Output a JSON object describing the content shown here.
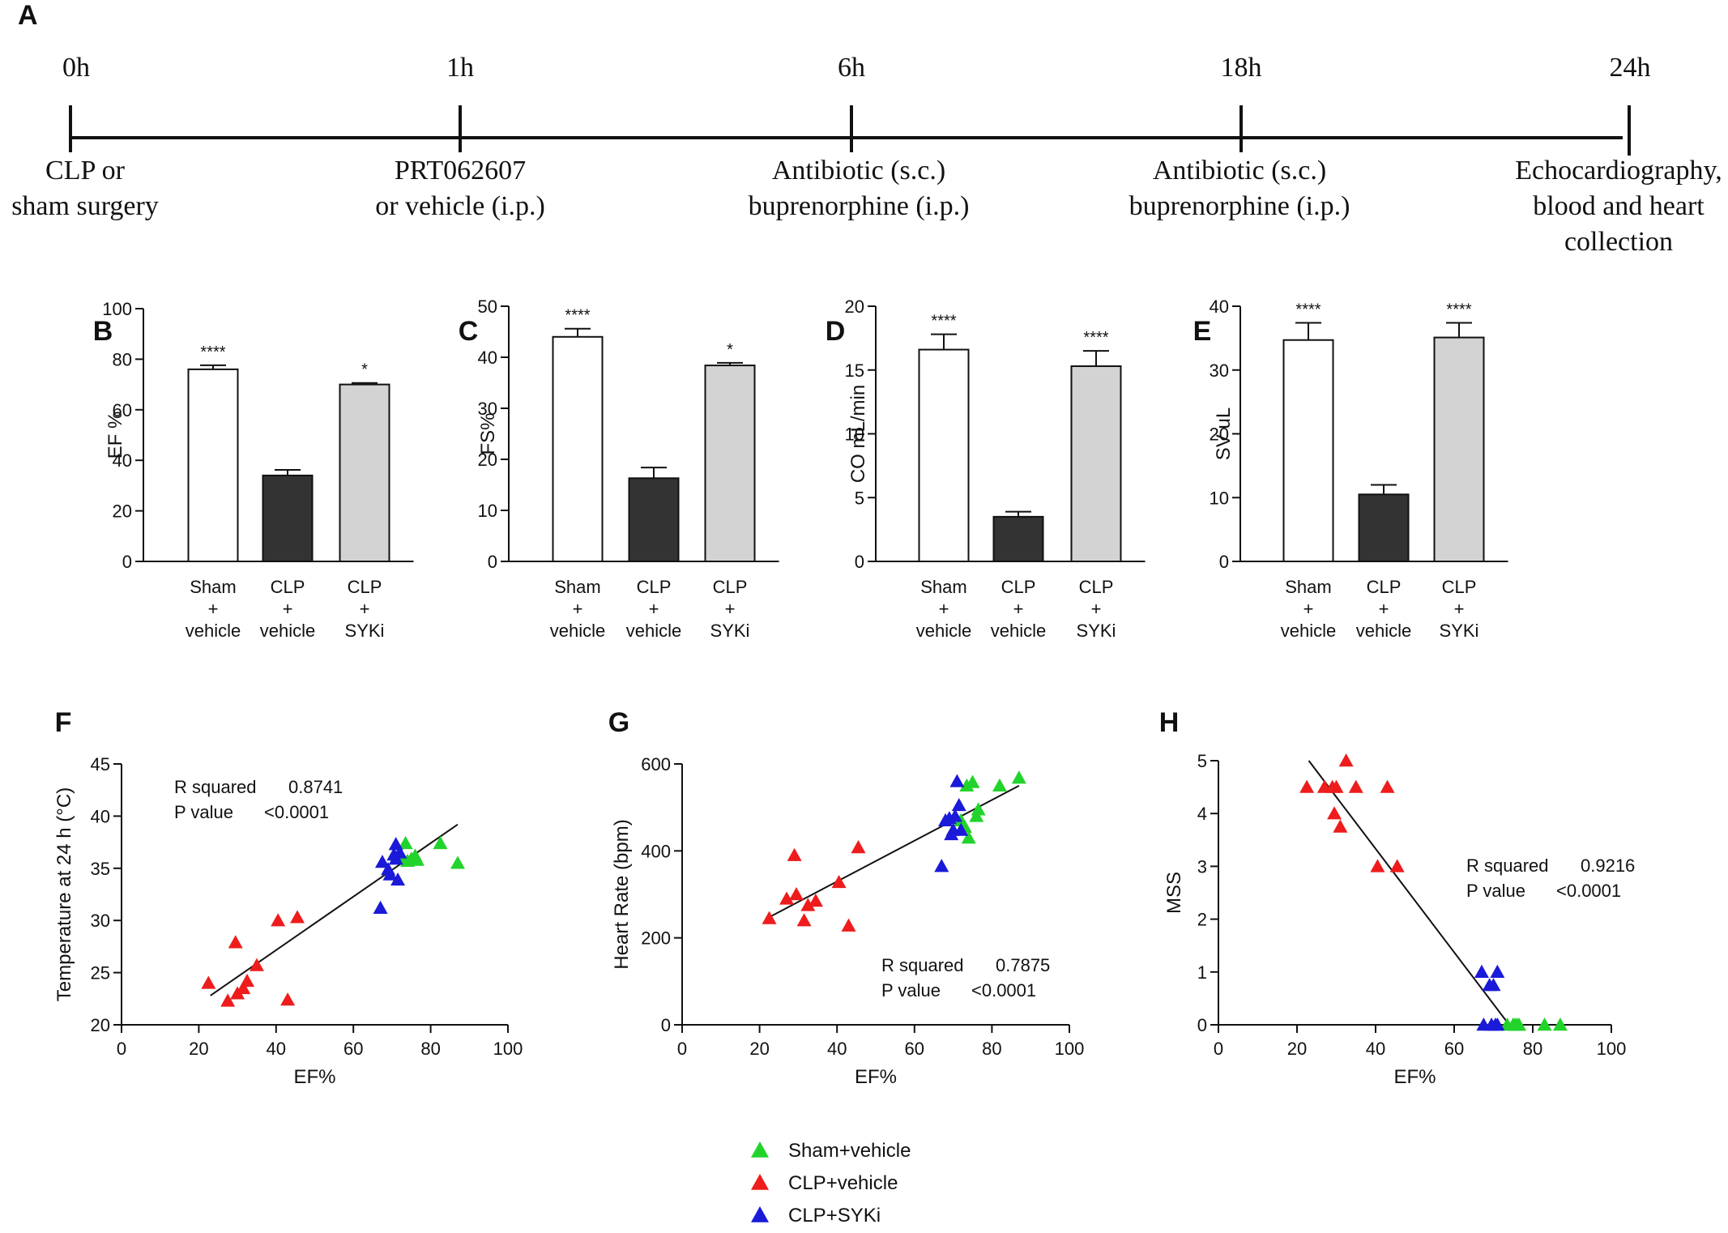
{
  "colors": {
    "sham": "#22d32b",
    "clp": "#ee1c1c",
    "syki": "#1a1ad8",
    "bar_sham": "#ffffff",
    "bar_clp": "#333333",
    "bar_syki": "#d3d3d3",
    "axis": "#111111"
  },
  "timeline": {
    "panel_label": "A",
    "points": [
      {
        "time": "0h",
        "label_lines": [
          "CLP or",
          "sham surgery"
        ]
      },
      {
        "time": "1h",
        "label_lines": [
          "PRT062607",
          "or vehicle (i.p.)"
        ]
      },
      {
        "time": "6h",
        "label_lines": [
          "Antibiotic (s.c.)",
          "buprenorphine (i.p.)"
        ]
      },
      {
        "time": "18h",
        "label_lines": [
          "Antibiotic (s.c.)",
          "buprenorphine (i.p.)"
        ]
      },
      {
        "time": "24h",
        "label_lines": [
          "Echocardiography,",
          "blood and heart",
          "collection"
        ]
      }
    ]
  },
  "legend": [
    {
      "key": "sham",
      "label": "Sham+vehicle"
    },
    {
      "key": "clp",
      "label": "CLP+vehicle"
    },
    {
      "key": "syki",
      "label": "CLP+SYKi"
    }
  ],
  "chart_data": [
    {
      "panel": "B",
      "type": "bar",
      "ylabel": "EF %",
      "ylim": [
        0,
        100
      ],
      "yticks": [
        0,
        20,
        40,
        60,
        80,
        100
      ],
      "categories": [
        [
          "Sham",
          "+",
          "vehicle"
        ],
        [
          "CLP",
          "+",
          "vehicle"
        ],
        [
          "CLP",
          "+",
          "SYKi"
        ]
      ],
      "values": [
        76,
        34,
        70
      ],
      "errors": [
        1.6,
        2.2,
        0.6
      ],
      "significance": [
        "****",
        "",
        "*"
      ]
    },
    {
      "panel": "C",
      "type": "bar",
      "ylabel": "FS%",
      "ylim": [
        0,
        50
      ],
      "yticks": [
        0,
        10,
        20,
        30,
        40,
        50
      ],
      "categories": [
        [
          "Sham",
          "+",
          "vehicle"
        ],
        [
          "CLP",
          "+",
          "vehicle"
        ],
        [
          "CLP",
          "+",
          "SYKi"
        ]
      ],
      "values": [
        44,
        16.3,
        38.4
      ],
      "errors": [
        1.6,
        2.1,
        0.5
      ],
      "significance": [
        "****",
        "",
        "*"
      ]
    },
    {
      "panel": "D",
      "type": "bar",
      "ylabel": "CO mL/min",
      "ylim": [
        0,
        20
      ],
      "yticks": [
        0,
        5,
        10,
        15,
        20
      ],
      "categories": [
        [
          "Sham",
          "+",
          "vehicle"
        ],
        [
          "CLP",
          "+",
          "vehicle"
        ],
        [
          "CLP",
          "+",
          "SYKi"
        ]
      ],
      "values": [
        16.6,
        3.5,
        15.3
      ],
      "errors": [
        1.2,
        0.4,
        1.2
      ],
      "significance": [
        "****",
        "",
        "****"
      ]
    },
    {
      "panel": "E",
      "type": "bar",
      "ylabel": "SV uL",
      "ylim": [
        0,
        40
      ],
      "yticks": [
        0,
        10,
        20,
        30,
        40
      ],
      "categories": [
        [
          "Sham",
          "+",
          "vehicle"
        ],
        [
          "CLP",
          "+",
          "vehicle"
        ],
        [
          "CLP",
          "+",
          "SYKi"
        ]
      ],
      "values": [
        34.7,
        10.5,
        35.1
      ],
      "errors": [
        2.7,
        1.5,
        2.3
      ],
      "significance": [
        "****",
        "",
        "****"
      ]
    },
    {
      "panel": "F",
      "type": "scatter",
      "xlabel": "EF%",
      "ylabel": "Temperature at 24 h (°C)",
      "xlim": [
        0,
        100
      ],
      "ylim": [
        20,
        45
      ],
      "xticks": [
        0,
        20,
        40,
        60,
        80,
        100
      ],
      "yticks": [
        20,
        25,
        30,
        35,
        40,
        45
      ],
      "stats": {
        "r_label": "R squared",
        "r_value": "0.8741",
        "p_label": "P value",
        "p_value": "<0.0001"
      },
      "stats_pos": "top-left",
      "fit": [
        [
          23,
          22.8
        ],
        [
          87,
          39.2
        ]
      ],
      "series": [
        {
          "name": "Sham+vehicle",
          "key": "sham",
          "points": [
            [
              73.5,
              37.4
            ],
            [
              75,
              35.9
            ],
            [
              76,
              36.2
            ],
            [
              76.5,
              35.8
            ],
            [
              82.5,
              37.4
            ],
            [
              87,
              35.5
            ],
            [
              72.5,
              36.1
            ],
            [
              74,
              35.7
            ]
          ]
        },
        {
          "name": "CLP+vehicle",
          "key": "clp",
          "points": [
            [
              22.5,
              24
            ],
            [
              27.5,
              22.3
            ],
            [
              29.5,
              27.9
            ],
            [
              30,
              23
            ],
            [
              31.5,
              23.5
            ],
            [
              32.5,
              24.2
            ],
            [
              35,
              25.7
            ],
            [
              40.5,
              30
            ],
            [
              43,
              22.4
            ],
            [
              45.5,
              30.3
            ]
          ]
        },
        {
          "name": "CLP+SYKi",
          "key": "syki",
          "points": [
            [
              67,
              31.2
            ],
            [
              67.5,
              35.6
            ],
            [
              69,
              34.9
            ],
            [
              69.5,
              34.4
            ],
            [
              70.5,
              36.3
            ],
            [
              71,
              37.3
            ],
            [
              71,
              35.9
            ],
            [
              71.5,
              33.9
            ],
            [
              72,
              36.5
            ]
          ]
        }
      ]
    },
    {
      "panel": "G",
      "type": "scatter",
      "xlabel": "EF%",
      "ylabel": "Heart Rate (bpm)",
      "xlim": [
        0,
        100
      ],
      "ylim": [
        0,
        600
      ],
      "xticks": [
        0,
        20,
        40,
        60,
        80,
        100
      ],
      "yticks": [
        0,
        200,
        400,
        600
      ],
      "stats": {
        "r_label": "R squared",
        "r_value": "0.7875",
        "p_label": "P value",
        "p_value": "<0.0001"
      },
      "stats_pos": "bottom-right",
      "fit": [
        [
          23,
          250
        ],
        [
          87,
          550
        ]
      ],
      "series": [
        {
          "name": "Sham+vehicle",
          "key": "sham",
          "points": [
            [
              72,
              470
            ],
            [
              73.5,
              550
            ],
            [
              74,
              430
            ],
            [
              75,
              558
            ],
            [
              76,
              480
            ],
            [
              76.5,
              495
            ],
            [
              82,
              550
            ],
            [
              87,
              568
            ],
            [
              73,
              455
            ]
          ]
        },
        {
          "name": "CLP+vehicle",
          "key": "clp",
          "points": [
            [
              22.5,
              245
            ],
            [
              27,
              290
            ],
            [
              29,
              390
            ],
            [
              29.5,
              300
            ],
            [
              31.5,
              240
            ],
            [
              32.5,
              275
            ],
            [
              34.5,
              285
            ],
            [
              40.5,
              328
            ],
            [
              43,
              228
            ],
            [
              45.5,
              408
            ]
          ]
        },
        {
          "name": "CLP+SYKi",
          "key": "syki",
          "points": [
            [
              67,
              365
            ],
            [
              68,
              470
            ],
            [
              69,
              475
            ],
            [
              69.5,
              438
            ],
            [
              70,
              448
            ],
            [
              70.5,
              480
            ],
            [
              71,
              560
            ],
            [
              71.5,
              505
            ],
            [
              72,
              448
            ]
          ]
        }
      ]
    },
    {
      "panel": "H",
      "type": "scatter",
      "xlabel": "EF%",
      "ylabel": "MSS",
      "xlim": [
        0,
        100
      ],
      "ylim": [
        0,
        5
      ],
      "xticks": [
        0,
        20,
        40,
        60,
        80,
        100
      ],
      "yticks": [
        0,
        1,
        2,
        3,
        4,
        5
      ],
      "stats": {
        "r_label": "R squared",
        "r_value": "0.9216",
        "p_label": "P value",
        "p_value": "<0.0001"
      },
      "stats_pos": "middle-right",
      "fit": [
        [
          23,
          5.0
        ],
        [
          74,
          0
        ]
      ],
      "fit_tail": [
        [
          74,
          0
        ],
        [
          88,
          0
        ]
      ],
      "series": [
        {
          "name": "Sham+vehicle",
          "key": "sham",
          "points": [
            [
              73.5,
              0
            ],
            [
              75,
              0
            ],
            [
              75.5,
              0
            ],
            [
              76,
              0
            ],
            [
              76.5,
              0
            ],
            [
              83,
              0
            ],
            [
              87,
              0
            ]
          ]
        },
        {
          "name": "CLP+vehicle",
          "key": "clp",
          "points": [
            [
              22.5,
              4.5
            ],
            [
              27,
              4.5
            ],
            [
              29,
              4.5
            ],
            [
              29.5,
              4.0
            ],
            [
              30,
              4.5
            ],
            [
              31,
              3.75
            ],
            [
              32.5,
              5.0
            ],
            [
              35,
              4.5
            ],
            [
              40.5,
              3.0
            ],
            [
              43,
              4.5
            ],
            [
              45.5,
              3.0
            ]
          ]
        },
        {
          "name": "CLP+SYKi",
          "key": "syki",
          "points": [
            [
              67,
              1.0
            ],
            [
              67.5,
              0
            ],
            [
              69,
              0.75
            ],
            [
              69.5,
              0
            ],
            [
              70,
              0.75
            ],
            [
              70.5,
              0
            ],
            [
              71,
              1.0
            ],
            [
              71,
              0
            ]
          ]
        }
      ]
    }
  ]
}
